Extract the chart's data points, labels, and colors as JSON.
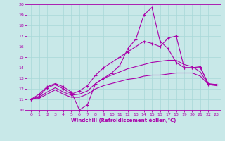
{
  "title": "",
  "xlabel": "Windchill (Refroidissement éolien,°C)",
  "ylabel": "",
  "xlim": [
    -0.5,
    23.5
  ],
  "ylim": [
    10,
    20
  ],
  "xticks": [
    0,
    1,
    2,
    3,
    4,
    5,
    6,
    7,
    8,
    9,
    10,
    11,
    12,
    13,
    14,
    15,
    16,
    17,
    18,
    19,
    20,
    21,
    22,
    23
  ],
  "yticks": [
    10,
    11,
    12,
    13,
    14,
    15,
    16,
    17,
    18,
    19,
    20
  ],
  "background_color": "#c8e8e8",
  "grid_color": "#a8d8d8",
  "line_color": "#aa00aa",
  "lines": [
    {
      "x": [
        0,
        1,
        2,
        3,
        4,
        5,
        6,
        7,
        8,
        9,
        10,
        11,
        12,
        13,
        14,
        15,
        16,
        17,
        18,
        19,
        20,
        21,
        22,
        23
      ],
      "y": [
        11.0,
        11.5,
        12.2,
        12.5,
        12.2,
        11.7,
        10.0,
        10.5,
        12.5,
        13.0,
        13.5,
        14.2,
        15.8,
        16.7,
        19.0,
        19.7,
        16.5,
        15.8,
        14.5,
        14.0,
        14.0,
        14.0,
        12.5,
        12.4
      ],
      "marker": "+"
    },
    {
      "x": [
        0,
        1,
        2,
        3,
        4,
        5,
        6,
        7,
        8,
        9,
        10,
        11,
        12,
        13,
        14,
        15,
        16,
        17,
        18,
        19,
        20,
        21,
        22,
        23
      ],
      "y": [
        11.0,
        11.3,
        12.1,
        12.4,
        12.0,
        11.5,
        11.8,
        12.3,
        13.3,
        14.0,
        14.5,
        15.0,
        15.5,
        16.0,
        16.5,
        16.3,
        16.0,
        16.8,
        17.0,
        14.0,
        14.0,
        14.1,
        12.4,
        12.4
      ],
      "marker": "+"
    },
    {
      "x": [
        0,
        1,
        2,
        3,
        4,
        5,
        6,
        7,
        8,
        9,
        10,
        11,
        12,
        13,
        14,
        15,
        16,
        17,
        18,
        19,
        20,
        21,
        22,
        23
      ],
      "y": [
        11.0,
        11.2,
        11.7,
        12.1,
        11.7,
        11.4,
        11.5,
        11.8,
        12.5,
        13.0,
        13.3,
        13.6,
        13.9,
        14.1,
        14.3,
        14.5,
        14.6,
        14.7,
        14.7,
        14.3,
        14.1,
        13.6,
        12.4,
        12.4
      ],
      "marker": null
    },
    {
      "x": [
        0,
        1,
        2,
        3,
        4,
        5,
        6,
        7,
        8,
        9,
        10,
        11,
        12,
        13,
        14,
        15,
        16,
        17,
        18,
        19,
        20,
        21,
        22,
        23
      ],
      "y": [
        11.0,
        11.1,
        11.5,
        11.9,
        11.5,
        11.2,
        11.2,
        11.5,
        12.0,
        12.3,
        12.5,
        12.7,
        12.9,
        13.0,
        13.2,
        13.3,
        13.3,
        13.4,
        13.5,
        13.5,
        13.5,
        13.2,
        12.4,
        12.3
      ],
      "marker": null
    }
  ]
}
